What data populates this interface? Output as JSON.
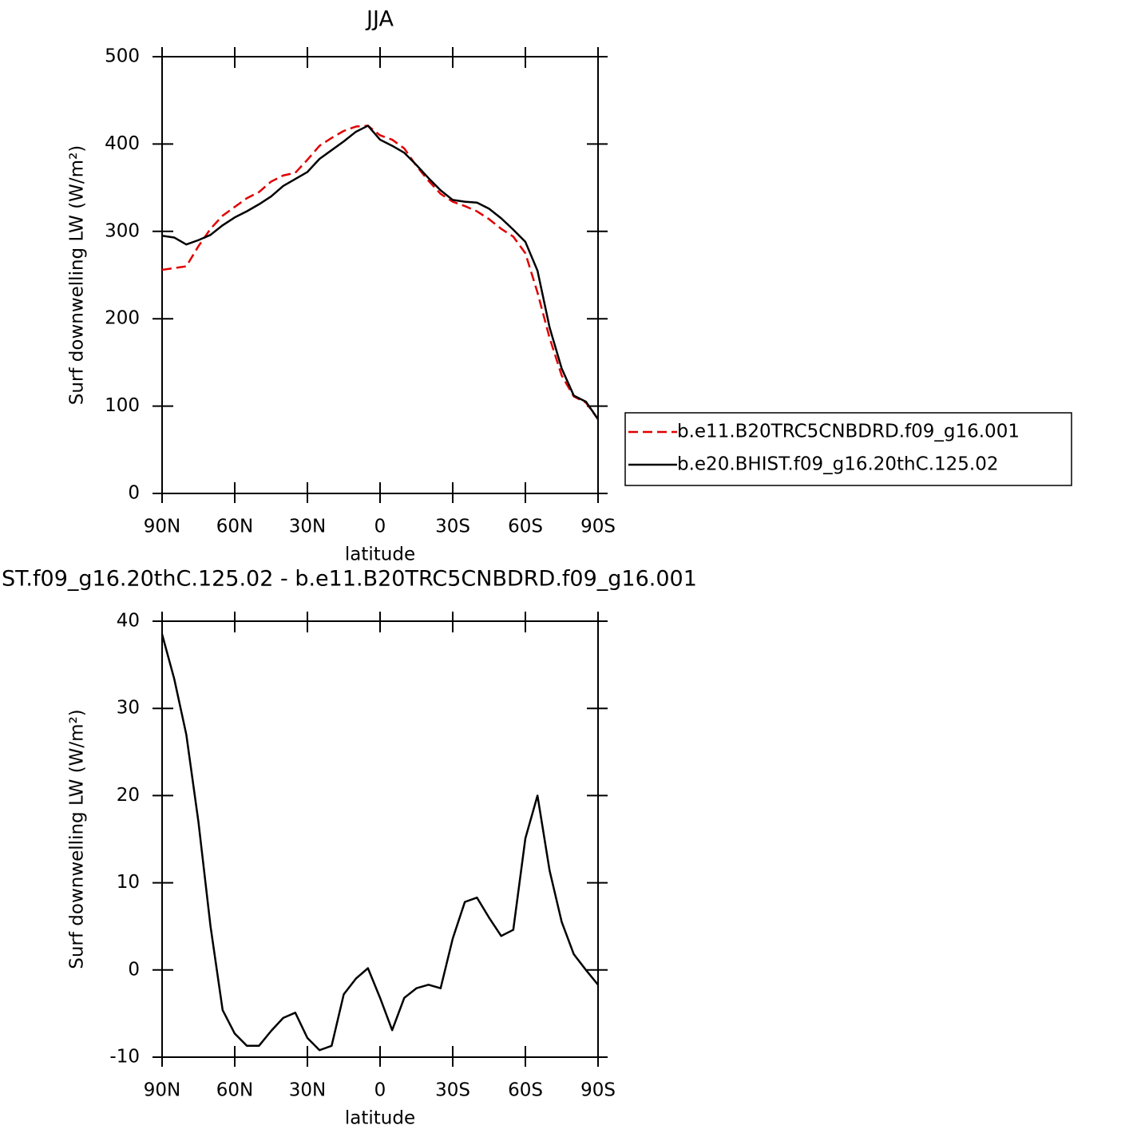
{
  "chart_data": [
    {
      "type": "line",
      "title": "JJA",
      "xlabel": "latitude",
      "ylabel": "Surf downwelling LW (W/m²)",
      "x": [
        90,
        85,
        80,
        75,
        70,
        65,
        60,
        55,
        50,
        45,
        40,
        35,
        30,
        25,
        20,
        15,
        10,
        5,
        0,
        -5,
        -10,
        -15,
        -20,
        -25,
        -30,
        -35,
        -40,
        -45,
        -50,
        -55,
        -60,
        -65,
        -70,
        -75,
        -80,
        -85,
        -90
      ],
      "xlim": [
        90,
        -90
      ],
      "xticks": [
        {
          "value": 90,
          "label": "90N"
        },
        {
          "value": 60,
          "label": "60N"
        },
        {
          "value": 30,
          "label": "30N"
        },
        0,
        {
          "value": -30,
          "label": "30S"
        },
        {
          "value": -60,
          "label": "60S"
        },
        {
          "value": -90,
          "label": "90S"
        }
      ],
      "ylim": [
        0,
        500
      ],
      "yticks": [
        0,
        100,
        200,
        300,
        400,
        500
      ],
      "legend": "right",
      "series": [
        {
          "name": "b.e11.B20TRC5CNBDRD.f09_g16.001",
          "color": "#e00000",
          "linestyle": "dashed",
          "values": [
            256,
            258,
            260,
            283,
            303,
            318,
            328,
            338,
            345,
            357,
            364,
            367,
            382,
            398,
            407,
            415,
            420,
            421,
            410,
            405,
            395,
            375,
            358,
            343,
            334,
            329,
            323,
            314,
            303,
            294,
            275,
            230,
            178,
            135,
            111,
            104,
            85
          ]
        },
        {
          "name": "b.e20.BHIST.f09_g16.20thC.125.02",
          "color": "#000000",
          "linestyle": "solid",
          "values": [
            295,
            293,
            285,
            290,
            296,
            307,
            316,
            323,
            331,
            340,
            352,
            360,
            368,
            383,
            393,
            403,
            414,
            421,
            405,
            398,
            390,
            376,
            361,
            347,
            336,
            334,
            333,
            326,
            315,
            302,
            288,
            255,
            190,
            143,
            112,
            105,
            85
          ]
        }
      ]
    },
    {
      "type": "line",
      "title": "ST.f09_g16.20thC.125.02 - b.e11.B20TRC5CNBDRD.f09_g16.001",
      "xlabel": "latitude",
      "ylabel": "Surf downwelling LW (W/m²)",
      "x": [
        90,
        85,
        80,
        75,
        70,
        65,
        60,
        55,
        50,
        45,
        40,
        35,
        30,
        25,
        20,
        15,
        10,
        5,
        0,
        -5,
        -10,
        -15,
        -20,
        -25,
        -30,
        -35,
        -40,
        -45,
        -50,
        -55,
        -60,
        -65,
        -70,
        -75,
        -80,
        -85,
        -90
      ],
      "xlim": [
        90,
        -90
      ],
      "xticks": [
        {
          "value": 90,
          "label": "90N"
        },
        {
          "value": 60,
          "label": "60N"
        },
        {
          "value": 30,
          "label": "30N"
        },
        0,
        {
          "value": -30,
          "label": "30S"
        },
        {
          "value": -60,
          "label": "60S"
        },
        {
          "value": -90,
          "label": "90S"
        }
      ],
      "ylim": [
        -10,
        40
      ],
      "yticks": [
        -10,
        0,
        10,
        20,
        30,
        40
      ],
      "series": [
        {
          "color": "#000000",
          "linestyle": "solid",
          "values": [
            38.5,
            33.4,
            27,
            17,
            5,
            -4.6,
            -7.3,
            -8.7,
            -8.7,
            -7,
            -5.5,
            -4.9,
            -7.8,
            -9.2,
            -8.7,
            -2.8,
            -1,
            0.2,
            -3.2,
            -6.9,
            -3.2,
            -2.1,
            -1.7,
            -2.1,
            3.6,
            7.8,
            8.3,
            6,
            3.9,
            4.6,
            15.1,
            20,
            11.4,
            5.5,
            1.8,
            0,
            -1.7
          ]
        }
      ]
    }
  ]
}
